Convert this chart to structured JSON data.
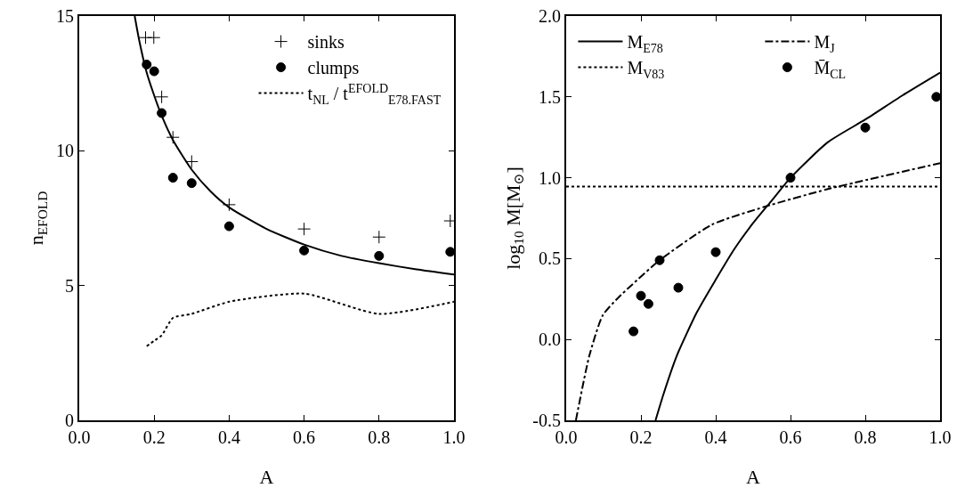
{
  "chart_data": [
    {
      "type": "line",
      "xlabel": "A",
      "ylabel": "n$_{EFOLD}$",
      "xlim": [
        0,
        1
      ],
      "ylim": [
        0,
        15
      ],
      "xticks": [
        {
          "value": 0,
          "label": "0.0"
        },
        {
          "value": 0.2,
          "label": "0.2"
        },
        {
          "value": 0.4,
          "label": "0.4"
        },
        {
          "value": 0.6,
          "label": "0.6"
        },
        {
          "value": 0.8,
          "label": "0.8"
        },
        {
          "value": 1,
          "label": "1.0"
        }
      ],
      "yticks": [
        0,
        5,
        10,
        15
      ],
      "legend": "top right",
      "series": [
        {
          "color": "#000000",
          "line_style": "solid",
          "marker": "none",
          "x": [
            0.148,
            0.16,
            0.18,
            0.2,
            0.22,
            0.25,
            0.3,
            0.35,
            0.4,
            0.5,
            0.6,
            0.7,
            0.8,
            0.9,
            1.0
          ],
          "values": [
            15.0,
            14.1,
            12.9,
            12.05,
            11.3,
            10.4,
            9.3,
            8.5,
            7.9,
            7.1,
            6.52,
            6.1,
            5.83,
            5.6,
            5.41
          ]
        },
        {
          "type": "scatter",
          "name": "sinks",
          "color": "#000000",
          "marker": "cross",
          "x": [
            0.177,
            0.199,
            0.22,
            0.25,
            0.3,
            0.4,
            0.6,
            0.8,
            0.99
          ],
          "values": [
            14.2,
            14.2,
            12.0,
            10.5,
            9.6,
            8.0,
            7.1,
            6.8,
            7.4
          ]
        },
        {
          "type": "scatter",
          "name": "clumps",
          "color": "#000000",
          "marker": "circle",
          "x": [
            0.18,
            0.2,
            0.22,
            0.25,
            0.3,
            0.4,
            0.6,
            0.8,
            0.99
          ],
          "values": [
            13.2,
            12.95,
            11.4,
            9.0,
            8.8,
            7.2,
            6.3,
            6.1,
            6.25
          ]
        },
        {
          "name": "t$_{NL}$ / t$^{EFOLD}$$_{E78.FAST}$",
          "color": "#000000",
          "line_style": "dotted",
          "marker": "none",
          "x": [
            0.18,
            0.2,
            0.22,
            0.25,
            0.3,
            0.4,
            0.6,
            0.8,
            1.0
          ],
          "values": [
            2.75,
            2.95,
            3.15,
            3.8,
            3.95,
            4.4,
            4.7,
            3.95,
            4.4
          ]
        }
      ]
    },
    {
      "type": "line",
      "xlabel": "A",
      "ylabel": "log$_{10}$ M[M$_{⊙}$]",
      "xlim": [
        0,
        1
      ],
      "ylim": [
        -0.5,
        2
      ],
      "xticks": [
        {
          "value": 0,
          "label": "0.0"
        },
        {
          "value": 0.2,
          "label": "0.2"
        },
        {
          "value": 0.4,
          "label": "0.4"
        },
        {
          "value": 0.6,
          "label": "0.6"
        },
        {
          "value": 0.8,
          "label": "0.8"
        },
        {
          "value": 1,
          "label": "1.0"
        }
      ],
      "yticks": [
        -0.5,
        {
          "value": 0,
          "label": "0.0"
        },
        0.5,
        {
          "value": 1,
          "label": "1.0"
        },
        1.5,
        {
          "value": 2,
          "label": "2.0"
        }
      ],
      "legend": "top left",
      "series": [
        {
          "name": "M$_{E78}$",
          "color": "#000000",
          "line_style": "solid",
          "marker": "none",
          "x": [
            0.239,
            0.26,
            0.296,
            0.35,
            0.4,
            0.45,
            0.5,
            0.55,
            0.6,
            0.7,
            0.8,
            0.9,
            1.0
          ],
          "values": [
            -0.5,
            -0.34,
            -0.1,
            0.17,
            0.37,
            0.56,
            0.72,
            0.86,
            1.0,
            1.22,
            1.36,
            1.51,
            1.65
          ]
        },
        {
          "name": "M$_{J}$",
          "color": "#000000",
          "line_style": "dashdot",
          "marker": "none",
          "x": [
            0.026,
            0.062,
            0.098,
            0.14,
            0.177,
            0.25,
            0.39,
            0.53,
            0.7,
            1.0
          ],
          "values": [
            -0.5,
            -0.1,
            0.15,
            0.26,
            0.34,
            0.49,
            0.71,
            0.82,
            0.93,
            1.09
          ]
        },
        {
          "name": "M$_{V83}$",
          "color": "#000000",
          "line_style": "dotted",
          "marker": "none",
          "x": [
            0,
            1
          ],
          "values": [
            0.945,
            0.945
          ]
        },
        {
          "type": "scatter",
          "name": "M̄$_{CL}$",
          "color": "#000000",
          "marker": "circle",
          "x": [
            0.18,
            0.2,
            0.22,
            0.25,
            0.3,
            0.4,
            0.6,
            0.8,
            0.99
          ],
          "values": [
            0.05,
            0.27,
            0.22,
            0.49,
            0.32,
            0.54,
            1.0,
            1.31,
            1.5
          ]
        }
      ]
    }
  ]
}
